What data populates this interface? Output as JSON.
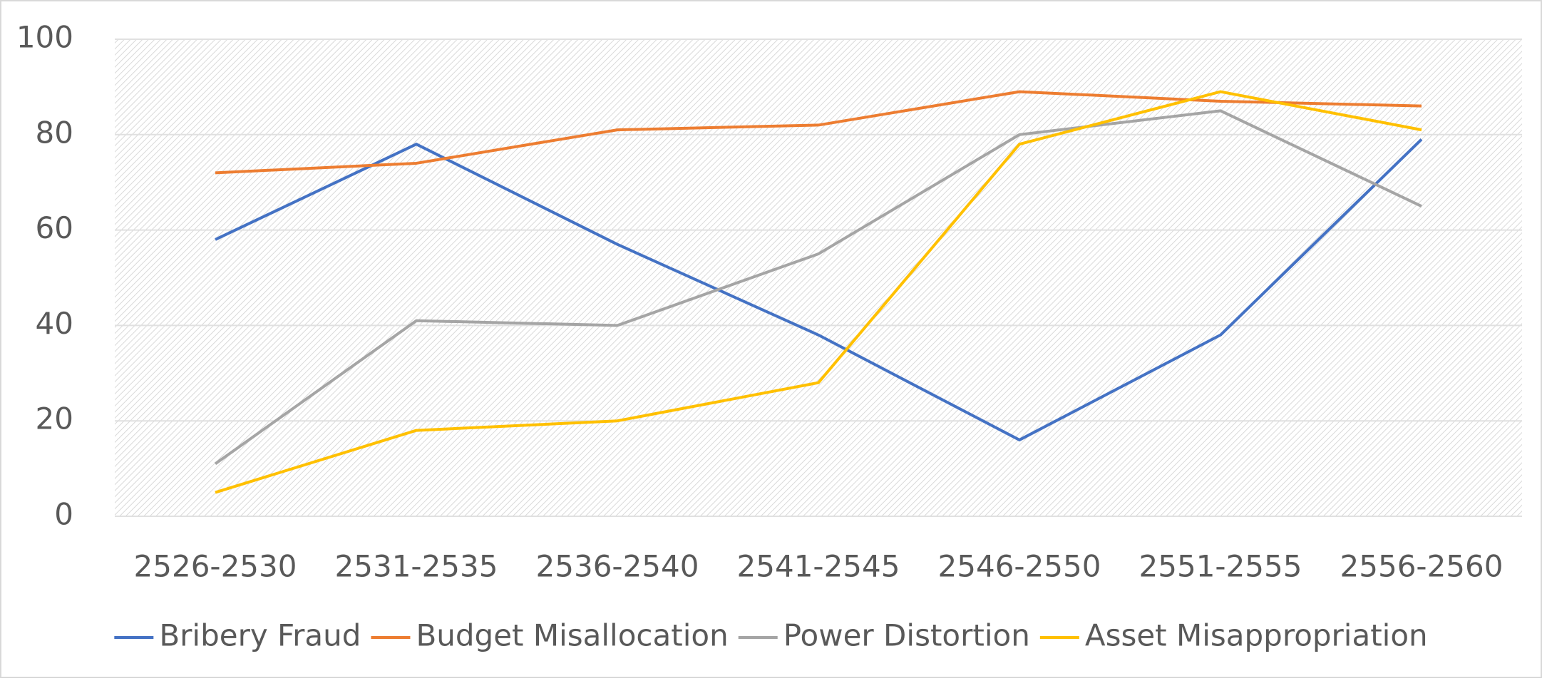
{
  "chart_data": {
    "type": "line",
    "categories": [
      "2526-2530",
      "2531-2535",
      "2536-2540",
      "2541-2545",
      "2546-2550",
      "2551-2555",
      "2556-2560"
    ],
    "series": [
      {
        "name": "Bribery Fraud",
        "color": "#4472c4",
        "values": [
          58,
          78,
          57,
          38,
          16,
          38,
          79
        ]
      },
      {
        "name": "Budget Misallocation",
        "color": "#ed7d31",
        "values": [
          72,
          74,
          81,
          82,
          89,
          87,
          86
        ]
      },
      {
        "name": "Power Distortion",
        "color": "#a5a5a5",
        "values": [
          11,
          41,
          40,
          55,
          80,
          85,
          65
        ]
      },
      {
        "name": "Asset Misappropriation",
        "color": "#ffc000",
        "values": [
          5,
          18,
          20,
          28,
          78,
          89,
          81
        ]
      }
    ],
    "ylim": [
      0,
      100
    ],
    "yticks": [
      0,
      20,
      40,
      60,
      80,
      100
    ],
    "grid": true,
    "legend": "bottom"
  }
}
